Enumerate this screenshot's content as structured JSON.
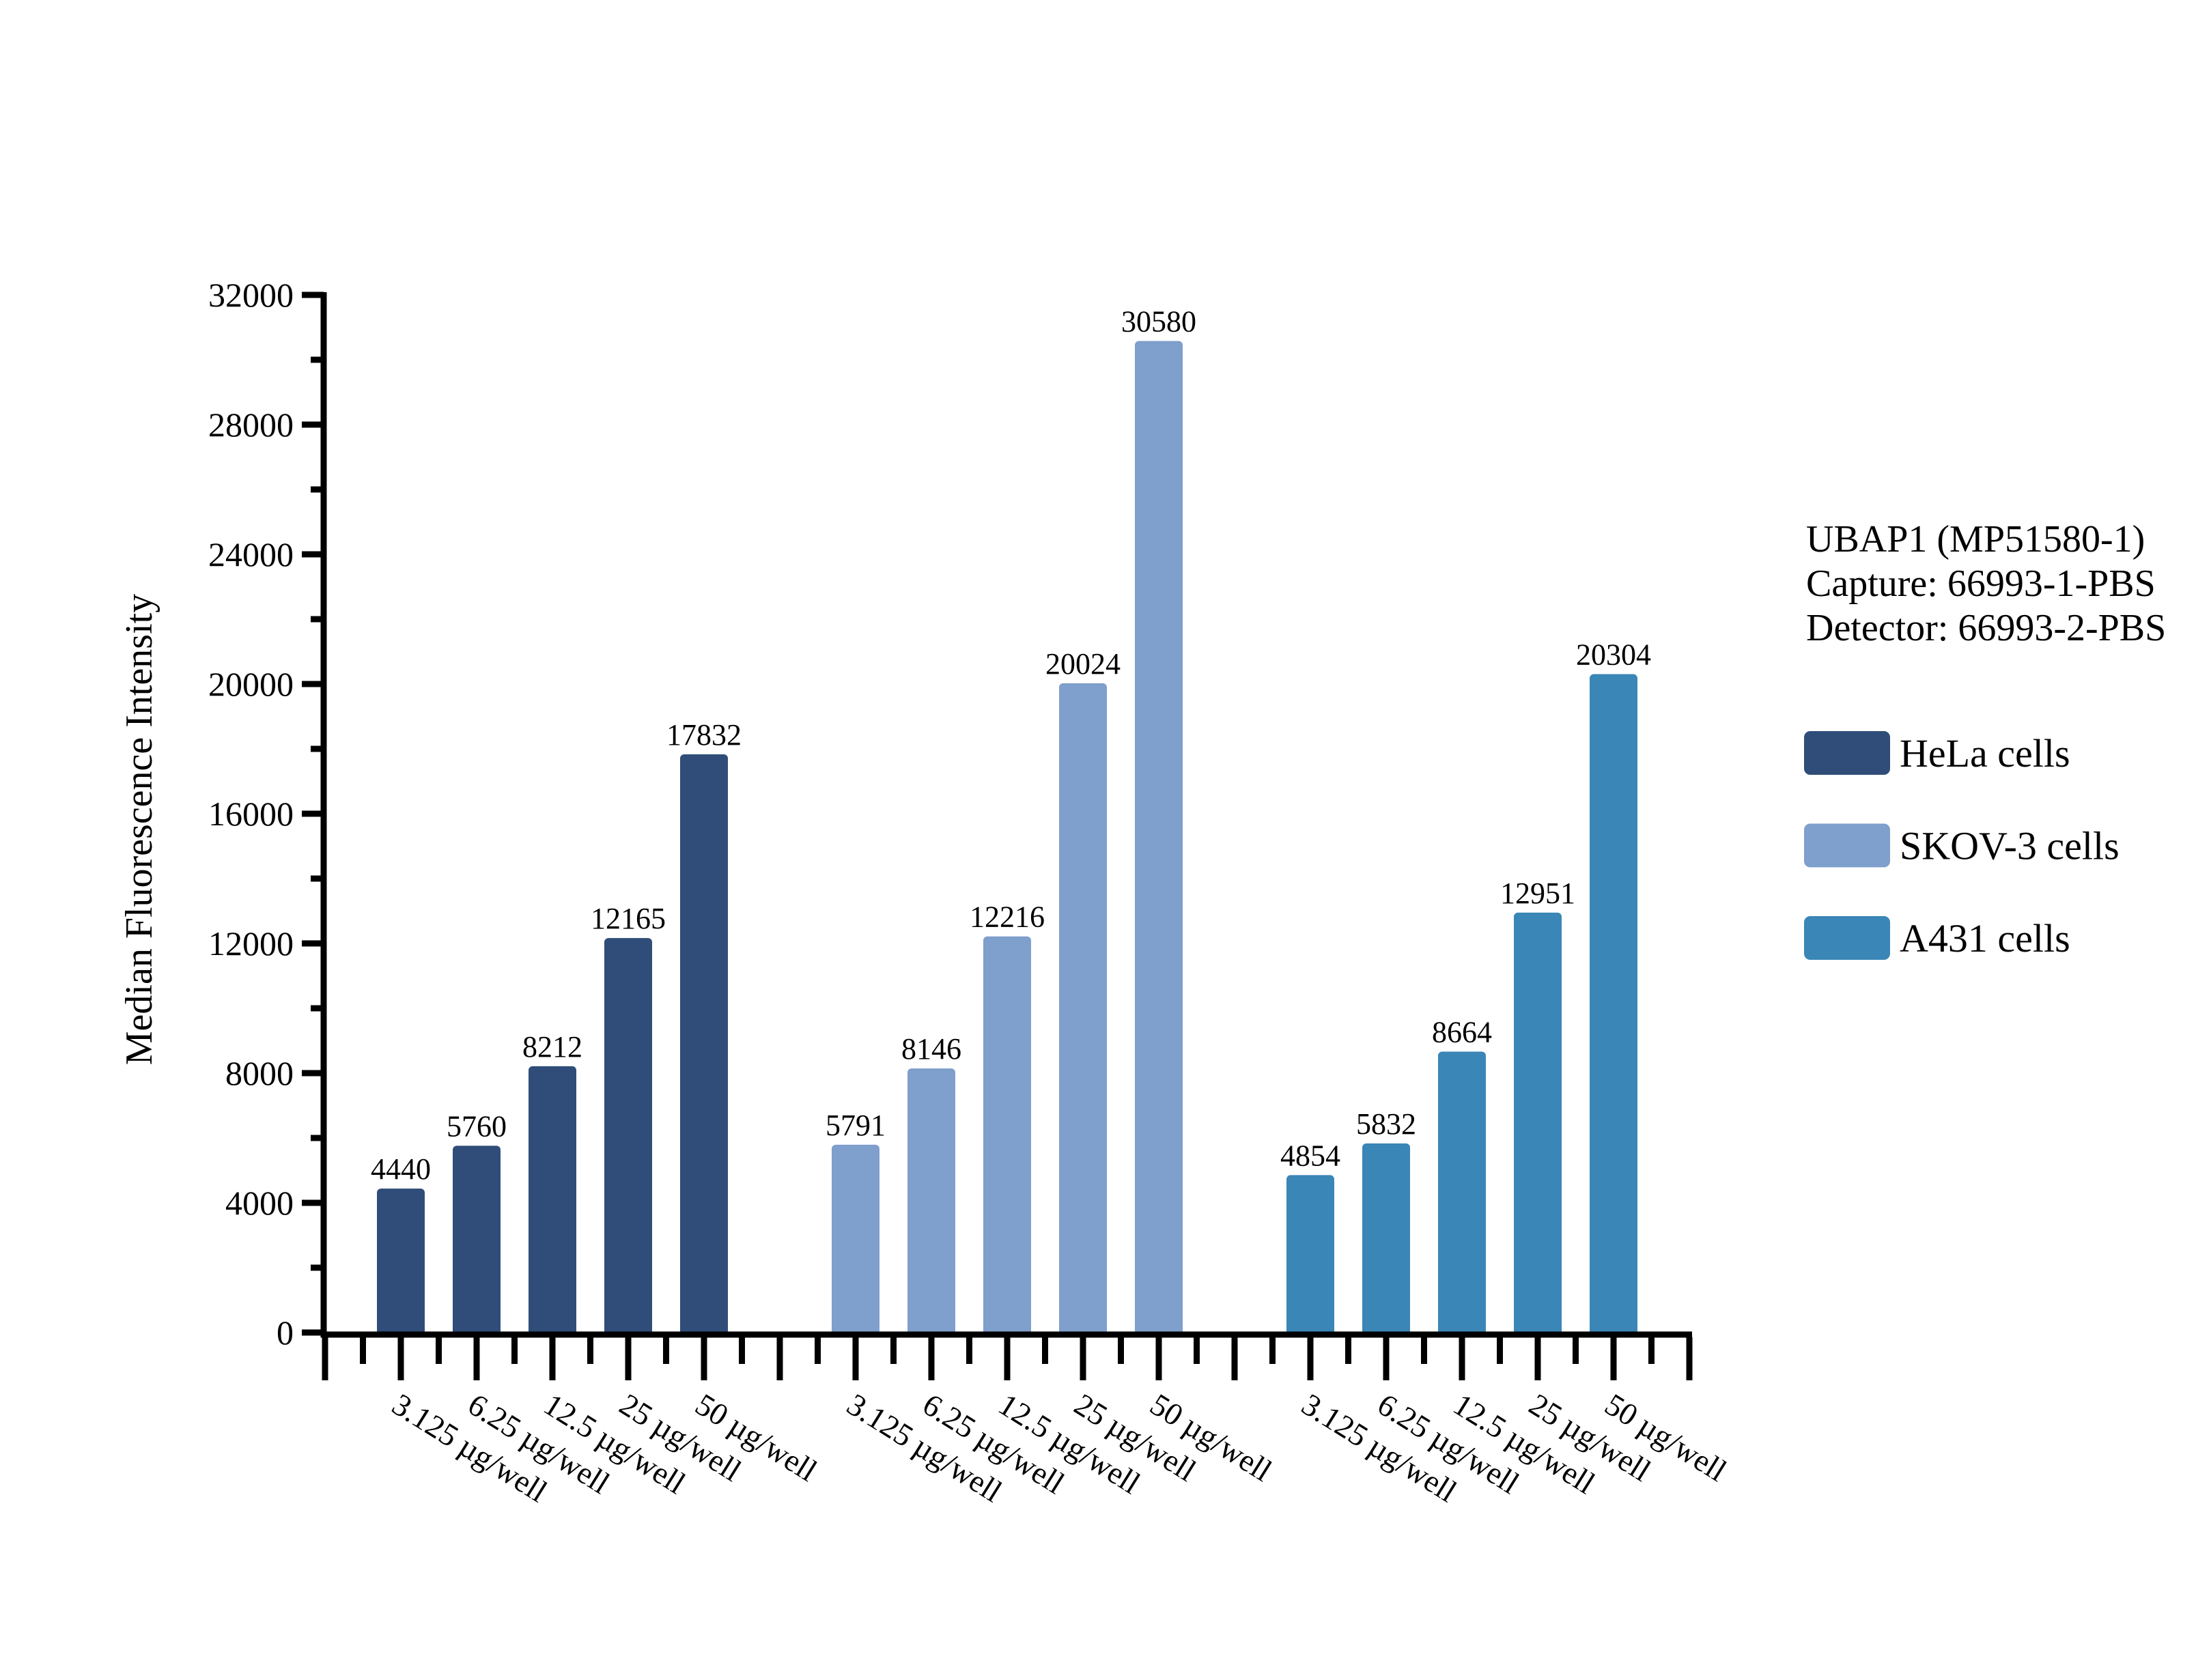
{
  "figure": {
    "background": "#ffffff",
    "text_color": "#000000",
    "axis_color": "#000000"
  },
  "chart_data": {
    "type": "bar",
    "title": "",
    "xlabel": "",
    "ylabel": "Median Fluorescence Intensity",
    "ylim": [
      0,
      32000
    ],
    "y_major_step": 4000,
    "y_minor_step": 2000,
    "y_major_tick_labels": [
      "0",
      "4000",
      "8000",
      "12000",
      "16000",
      "20000",
      "24000",
      "28000",
      "32000"
    ],
    "grid": "off",
    "legend_position": "right",
    "categories": [
      "3.125 µg/well",
      "6.25 µg/well",
      "12.5 µg/well",
      "25 µg/well",
      "50 µg/well"
    ],
    "series": [
      {
        "name": "HeLa cells",
        "color": "#2f4d78",
        "values": [
          4440,
          5760,
          8212,
          12165,
          17832
        ]
      },
      {
        "name": "SKOV-3 cells",
        "color": "#7f9fcc",
        "values": [
          5791,
          8146,
          12216,
          20024,
          30580
        ]
      },
      {
        "name": "A431 cells",
        "color": "#3a86b6",
        "values": [
          4854,
          5832,
          8664,
          12951,
          20304
        ]
      }
    ],
    "bar_value_labels": [
      [
        "4440",
        "5760",
        "8212",
        "12165",
        "17832"
      ],
      [
        "5791",
        "8146",
        "12216",
        "20024",
        "30580"
      ],
      [
        "4854",
        "5832",
        "8664",
        "12951",
        "20304"
      ]
    ],
    "annotation": {
      "lines": [
        "UBAP1 (MP51580-1)",
        "Capture: 66993-1-PBS",
        "Detector: 66993-2-PBS"
      ]
    }
  }
}
